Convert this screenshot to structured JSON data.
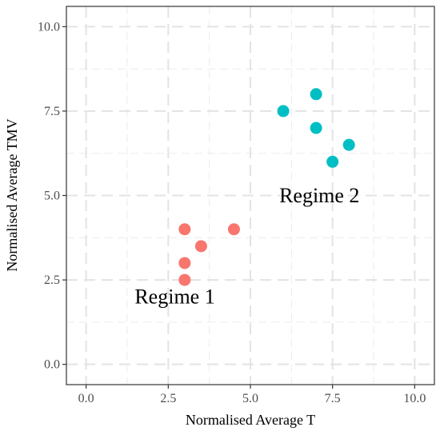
{
  "chart_data": {
    "type": "scatter",
    "xlabel": "Normalised Average T",
    "ylabel": "Normalised Average TMV",
    "xlim": [
      -0.6,
      10.6
    ],
    "ylim": [
      -0.6,
      10.6
    ],
    "x_ticks": [
      0.0,
      2.5,
      5.0,
      7.5,
      10.0
    ],
    "y_ticks": [
      0.0,
      2.5,
      5.0,
      7.5,
      10.0
    ],
    "x_tick_labels": [
      "0.0",
      "2.5",
      "5.0",
      "7.5",
      "10.0"
    ],
    "y_tick_labels": [
      "0.0",
      "2.5",
      "5.0",
      "7.5",
      "10.0"
    ],
    "grid": true,
    "legend": "none",
    "series": [
      {
        "color": "#F8766D",
        "points": [
          [
            3.0,
            4.0
          ],
          [
            4.5,
            4.0
          ],
          [
            3.5,
            3.5
          ],
          [
            3.0,
            3.0
          ],
          [
            3.0,
            2.5
          ]
        ]
      },
      {
        "color": "#00BFC4",
        "points": [
          [
            7.0,
            8.0
          ],
          [
            6.0,
            7.5
          ],
          [
            7.0,
            7.0
          ],
          [
            8.0,
            6.5
          ],
          [
            7.5,
            6.0
          ]
        ]
      }
    ],
    "annotations": [
      {
        "text": "Regime 1",
        "x": 2.7,
        "y": 1.8
      },
      {
        "text": "Regime 2",
        "x": 7.1,
        "y": 4.8
      }
    ]
  }
}
